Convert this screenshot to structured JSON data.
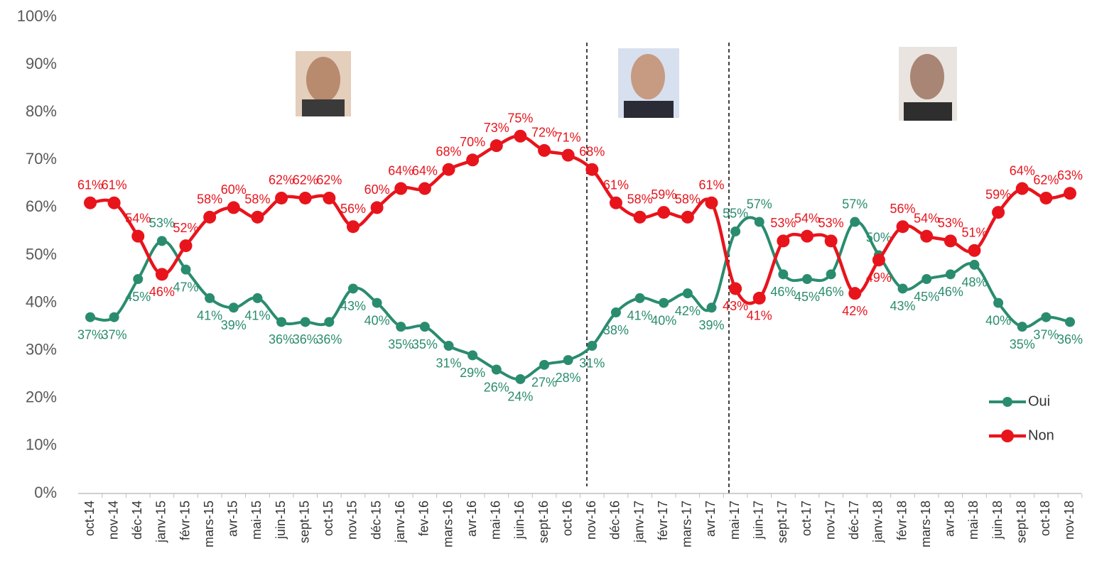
{
  "chart_data": {
    "type": "line",
    "categories": [
      "oct-14",
      "nov-14",
      "déc-14",
      "janv-15",
      "févr-15",
      "mars-15",
      "avr-15",
      "mai-15",
      "juin-15",
      "sept-15",
      "oct-15",
      "nov-15",
      "déc-15",
      "janv-16",
      "fev-16",
      "mars-16",
      "avr-16",
      "mai-16",
      "juin-16",
      "sept-16",
      "oct-16",
      "nov-16",
      "déc-16",
      "janv-17",
      "févr-17",
      "mars-17",
      "avr-17",
      "mai-17",
      "juin-17",
      "sept-17",
      "oct-17",
      "nov-17",
      "déc-17",
      "janv-18",
      "févr-18",
      "mars-18",
      "avr-18",
      "mai-18",
      "juin-18",
      "sept-18",
      "oct-18",
      "nov-18"
    ],
    "series": [
      {
        "name": "Oui",
        "color": "#2a8c6e",
        "values": [
          37,
          37,
          45,
          53,
          47,
          41,
          39,
          41,
          36,
          36,
          36,
          43,
          40,
          35,
          35,
          31,
          29,
          26,
          24,
          27,
          28,
          31,
          38,
          41,
          40,
          42,
          39,
          55,
          57,
          46,
          45,
          46,
          57,
          50,
          43,
          45,
          46,
          48,
          40,
          35,
          37,
          36
        ],
        "value_labels": [
          "37%",
          "37%",
          "45%",
          "53%",
          "47%",
          "41%",
          "39%",
          "41%",
          "36%",
          "36%",
          "36%",
          "43%",
          "40%",
          "35%",
          "35%",
          "31%",
          "29%",
          "26%",
          "24%",
          "27%",
          "28%",
          "31%",
          "38%",
          "41%",
          "40%",
          "42%",
          "39%",
          "55%",
          "57%",
          "46%",
          "45%",
          "46%",
          "57%",
          "50%",
          "43%",
          "45%",
          "46%",
          "48%",
          "40%",
          "35%",
          "37%",
          "36%"
        ]
      },
      {
        "name": "Non",
        "color": "#e8141c",
        "values": [
          61,
          61,
          54,
          46,
          52,
          58,
          60,
          58,
          62,
          62,
          62,
          56,
          60,
          64,
          64,
          68,
          70,
          73,
          75,
          72,
          71,
          68,
          61,
          58,
          59,
          58,
          61,
          43,
          41,
          53,
          54,
          53,
          42,
          49,
          56,
          54,
          53,
          51,
          59,
          64,
          62,
          63
        ],
        "value_labels": [
          "61%",
          "61%",
          "54%",
          "46%",
          "52%",
          "58%",
          "60%",
          "58%",
          "62%",
          "62%",
          "62%",
          "56%",
          "60%",
          "64%",
          "64%",
          "68%",
          "70%",
          "73%",
          "75%",
          "72%",
          "71%",
          "68%",
          "61%",
          "58%",
          "59%",
          "58%",
          "61%",
          "43%",
          "41%",
          "53%",
          "54%",
          "53%",
          "42%",
          "49%",
          "56%",
          "54%",
          "53%",
          "51%",
          "59%",
          "64%",
          "62%",
          "63%"
        ]
      }
    ],
    "ylim": [
      0,
      100
    ],
    "yticks": [
      {
        "value": 0,
        "label": "0%"
      },
      {
        "value": 10,
        "label": "10%"
      },
      {
        "value": 20,
        "label": "20%"
      },
      {
        "value": 30,
        "label": "30%"
      },
      {
        "value": 40,
        "label": "40%"
      },
      {
        "value": 50,
        "label": "50%"
      },
      {
        "value": 60,
        "label": "60%"
      },
      {
        "value": 70,
        "label": "70%"
      },
      {
        "value": 80,
        "label": "80%"
      },
      {
        "value": 90,
        "label": "90%"
      },
      {
        "value": 100,
        "label": "100%"
      }
    ],
    "grid": false,
    "legend": "right"
  }
}
